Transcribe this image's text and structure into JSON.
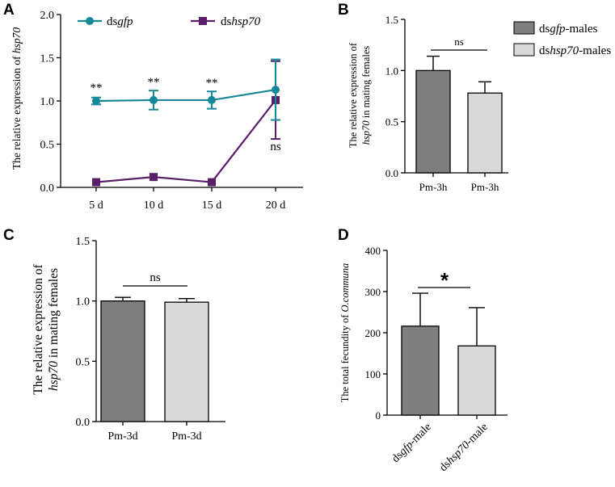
{
  "colors": {
    "dsgfp_line": "#17879a",
    "dshsp70_line": "#5a1f69",
    "bar_dark": "#7f7f7f",
    "bar_light": "#d9d9d9"
  },
  "panel_A": {
    "letter": "A",
    "ylabel_prefix": "The relative expression of ",
    "ylabel_gene": "hsp70",
    "legend": [
      {
        "prefix": "ds",
        "italic": "gfp",
        "suffix": ""
      },
      {
        "prefix": "ds",
        "italic": "hsp70",
        "suffix": ""
      }
    ],
    "sig_labels": [
      "**",
      "**",
      "**",
      "ns"
    ]
  },
  "panel_B": {
    "letter": "B",
    "ylabel_line1": "The relative expression of",
    "ylabel_gene": "hsp70",
    "ylabel_line2_rest": " in mating females",
    "sig": "ns",
    "legend": [
      {
        "prefix": "ds",
        "italic": "gfp",
        "suffix": "-males"
      },
      {
        "prefix": "ds",
        "italic": "hsp70",
        "suffix": "-males"
      }
    ]
  },
  "panel_C": {
    "letter": "C",
    "ylabel_line1": "The relative expression of",
    "ylabel_gene": "hsp70",
    "ylabel_line2_rest": " in mating females",
    "sig": "ns"
  },
  "panel_D": {
    "letter": "D",
    "ylabel_prefix": "The total fecundity of ",
    "ylabel_species": "O.communa",
    "sig": "*",
    "xlabels": [
      {
        "prefix": "ds",
        "italic": "gfp",
        "suffix": "-male"
      },
      {
        "prefix": "ds",
        "italic": "hsp70",
        "suffix": "-male"
      }
    ]
  },
  "chart_data": [
    {
      "panel": "A",
      "type": "line",
      "categories": [
        "5 d",
        "10 d",
        "15 d",
        "20 d"
      ],
      "ylim": [
        0,
        2.0
      ],
      "yticks": [
        "0.0",
        "0.5",
        "1.0",
        "1.5",
        "2.0"
      ],
      "series": [
        {
          "name": "dsgfp",
          "values": [
            1.0,
            1.01,
            1.01,
            1.13
          ],
          "errors": [
            0.04,
            0.11,
            0.1,
            0.35
          ]
        },
        {
          "name": "dshsp70",
          "values": [
            0.06,
            0.12,
            0.06,
            1.01
          ],
          "errors": [
            0.0,
            0.0,
            0.0,
            0.45
          ]
        }
      ]
    },
    {
      "panel": "B",
      "type": "bar",
      "categories": [
        "Pm-3h",
        "Pm-3h"
      ],
      "values": [
        1.0,
        0.78
      ],
      "errors": [
        0.14,
        0.11
      ],
      "ylim": [
        0,
        1.5
      ],
      "yticks": [
        "0.0",
        "0.5",
        "1.0",
        "1.5"
      ]
    },
    {
      "panel": "C",
      "type": "bar",
      "categories": [
        "Pm-3d",
        "Pm-3d"
      ],
      "values": [
        1.0,
        0.99
      ],
      "errors": [
        0.03,
        0.03
      ],
      "ylim": [
        0,
        1.5
      ],
      "yticks": [
        "0.0",
        "0.5",
        "1.0",
        "1.5"
      ]
    },
    {
      "panel": "D",
      "type": "bar",
      "categories": [
        "dsgfp-male",
        "dshsp70-male"
      ],
      "values": [
        216,
        168
      ],
      "errors": [
        80,
        93
      ],
      "ylim": [
        0,
        400
      ],
      "yticks": [
        "0",
        "100",
        "200",
        "300",
        "400"
      ]
    }
  ]
}
